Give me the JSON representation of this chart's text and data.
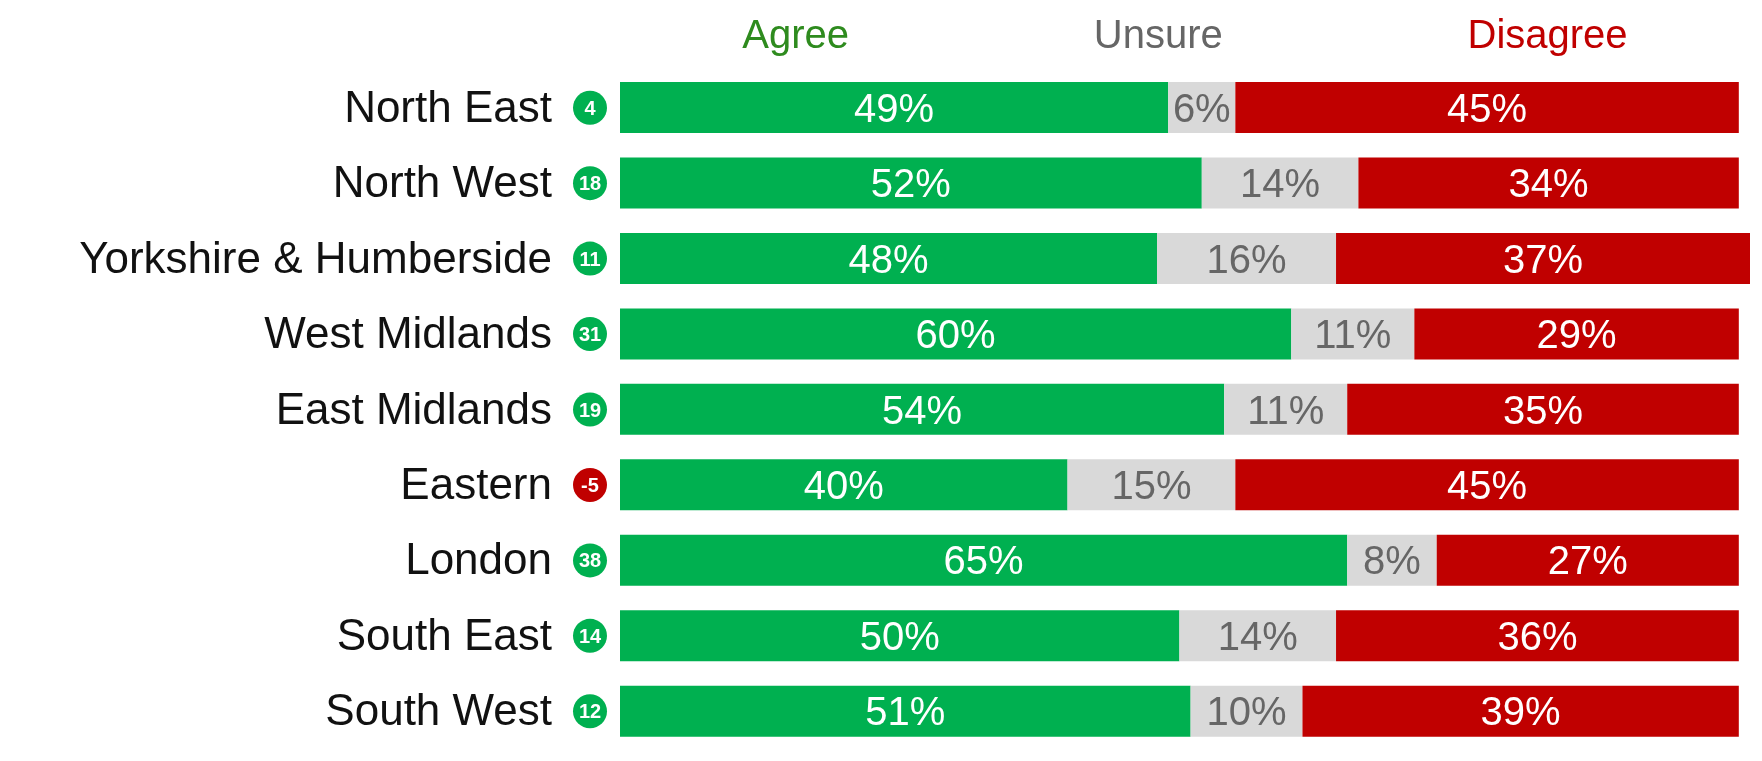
{
  "chart_data": {
    "type": "bar",
    "orientation": "horizontal",
    "stacked": true,
    "legend": "top",
    "categories": [
      "North East",
      "North West",
      "Yorkshire & Humberside",
      "West Midlands",
      "East Midlands",
      "Eastern",
      "London",
      "South East",
      "South West"
    ],
    "series": [
      {
        "name": "Agree",
        "color": "#00b050",
        "values": [
          49,
          52,
          48,
          60,
          54,
          40,
          65,
          50,
          51
        ],
        "value_labels": [
          "49%",
          "52%",
          "48%",
          "60%",
          "54%",
          "40%",
          "65%",
          "50%",
          "51%"
        ]
      },
      {
        "name": "Unsure",
        "color": "#d9d9d9",
        "values": [
          6,
          14,
          16,
          11,
          11,
          15,
          8,
          14,
          10
        ],
        "value_labels": [
          "6%",
          "14%",
          "16%",
          "11%",
          "11%",
          "15%",
          "8%",
          "14%",
          "10%"
        ]
      },
      {
        "name": "Disagree",
        "color": "#c00000",
        "values": [
          45,
          34,
          37,
          29,
          35,
          45,
          27,
          36,
          39
        ],
        "value_labels": [
          "45%",
          "34%",
          "37%",
          "29%",
          "35%",
          "45%",
          "27%",
          "36%",
          "39%"
        ]
      }
    ],
    "annotations": [
      "4",
      "18",
      "11",
      "31",
      "19",
      "-5",
      "38",
      "14",
      "12"
    ]
  }
}
